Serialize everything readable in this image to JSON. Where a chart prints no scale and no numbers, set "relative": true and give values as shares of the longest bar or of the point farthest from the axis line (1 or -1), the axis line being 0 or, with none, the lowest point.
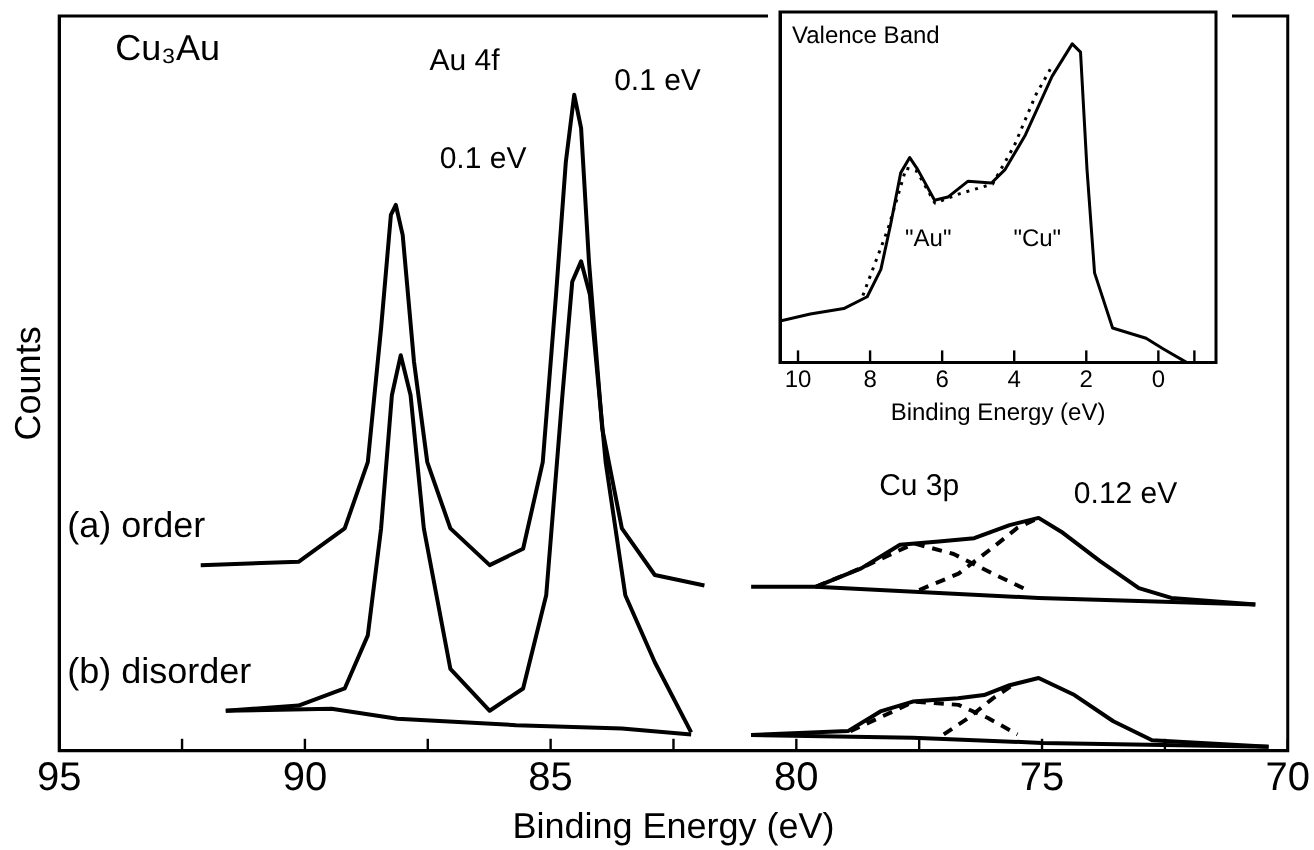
{
  "chart_data": [
    {
      "type": "line",
      "title": "Cu₃Au",
      "xlabel": "Binding Energy (eV)",
      "ylabel": "Counts",
      "relative": true,
      "grid": false,
      "legend": false,
      "marker": "none",
      "xlim": [
        95,
        70
      ],
      "xticks": [
        95,
        {
          "value": 92.5,
          "label": null
        },
        90,
        {
          "value": 87.5,
          "label": null
        },
        85,
        {
          "value": 82.5,
          "label": null
        },
        80,
        {
          "value": 77.5,
          "label": null
        },
        75,
        {
          "value": 72.5,
          "label": null
        },
        70
      ],
      "series": [
        {
          "name": "(a) order",
          "color": "#000000",
          "x": [
            92.12,
            90.13,
            89.19,
            88.72,
            88.45,
            88.25,
            88.15,
            88.01,
            87.78,
            87.51,
            87.04,
            86.24,
            85.56,
            85.16,
            84.89,
            84.69,
            84.52,
            84.38,
            84.22,
            83.95,
            83.55,
            82.88,
            81.87
          ],
          "values": [
            0.283,
            0.288,
            0.339,
            0.44,
            0.644,
            0.817,
            0.832,
            0.786,
            0.593,
            0.44,
            0.339,
            0.283,
            0.308,
            0.44,
            0.695,
            0.898,
            1.0,
            0.949,
            0.746,
            0.491,
            0.339,
            0.268,
            0.252
          ]
        },
        {
          "name": "(b) disorder",
          "color": "#000000",
          "x": [
            91.61,
            90.13,
            89.19,
            88.72,
            88.45,
            88.23,
            88.05,
            87.85,
            87.58,
            87.04,
            86.24,
            85.56,
            85.09,
            84.76,
            84.56,
            84.38,
            84.2,
            83.88,
            83.48,
            82.88,
            82.14
          ],
          "values": [
            0.061,
            0.069,
            0.095,
            0.176,
            0.339,
            0.542,
            0.603,
            0.542,
            0.339,
            0.125,
            0.061,
            0.095,
            0.237,
            0.542,
            0.715,
            0.746,
            0.695,
            0.44,
            0.237,
            0.135,
            0.028
          ]
        },
        {
          "color": "#000000",
          "x": [
            91.61,
            89.46,
            88.12,
            85.7,
            83.55,
            82.14
          ],
          "values": [
            0.061,
            0.064,
            0.049,
            0.039,
            0.034,
            0.025
          ]
        },
        {
          "color": "#000000",
          "x": [
            80.92,
            79.61,
            78.68,
            77.89,
            77.1,
            76.38,
            75.66,
            75.07,
            74.61,
            73.82,
            73.03,
            72.37,
            70.66
          ],
          "values": [
            0.25,
            0.25,
            0.278,
            0.314,
            0.319,
            0.324,
            0.344,
            0.355,
            0.334,
            0.289,
            0.248,
            0.233,
            0.223
          ]
        },
        {
          "color": "#000000",
          "x": [
            79.61,
            75.07,
            70.66
          ],
          "values": [
            0.25,
            0.233,
            0.223
          ]
        },
        {
          "color": "#000000",
          "line_style": "dashed",
          "x": [
            79.6,
            78.7,
            77.6,
            76.8,
            76.0,
            75.3
          ],
          "values": [
            0.25,
            0.278,
            0.316,
            0.3,
            0.27,
            0.245
          ]
        },
        {
          "color": "#000000",
          "line_style": "dashed",
          "x": [
            77.5,
            76.7,
            76.0,
            75.5,
            75.07
          ],
          "values": [
            0.245,
            0.27,
            0.31,
            0.34,
            0.355
          ]
        },
        {
          "color": "#000000",
          "x": [
            80.92,
            78.95,
            78.29,
            77.63,
            76.71,
            76.18,
            75.66,
            75.07,
            74.34,
            73.55,
            72.76,
            70.39
          ],
          "values": [
            0.024,
            0.03,
            0.06,
            0.075,
            0.08,
            0.085,
            0.1,
            0.111,
            0.085,
            0.045,
            0.016,
            0.006
          ]
        },
        {
          "color": "#000000",
          "x": [
            80.92,
            77.63,
            75.0,
            70.39
          ],
          "values": [
            0.024,
            0.02,
            0.012,
            0.006
          ]
        },
        {
          "color": "#000000",
          "line_style": "dashed",
          "x": [
            78.9,
            77.6,
            76.7,
            76.1,
            75.5
          ],
          "values": [
            0.03,
            0.075,
            0.07,
            0.05,
            0.025
          ]
        },
        {
          "color": "#000000",
          "line_style": "dashed",
          "x": [
            77.0,
            76.5,
            76.0,
            75.6
          ],
          "values": [
            0.025,
            0.05,
            0.08,
            0.1
          ]
        }
      ],
      "annotations": [
        "Au 4f",
        "0.1 eV",
        "0.1 eV",
        "Cu 3p",
        "0.12 eV"
      ]
    },
    {
      "type": "line",
      "title": "Valence Band",
      "xlabel": "Binding Energy (eV)",
      "relative": true,
      "grid": false,
      "legend": false,
      "marker": "none",
      "xlim": [
        10.5,
        -1.6
      ],
      "xticks": [
        10,
        8,
        6,
        4,
        2,
        0,
        {
          "value": -1,
          "label": null
        }
      ],
      "series": [
        {
          "color": "#000000",
          "x": [
            10.5,
            9.66,
            8.73,
            8.08,
            7.7,
            7.43,
            7.15,
            6.9,
            6.68,
            6.21,
            5.84,
            5.28,
            4.63,
            4.25,
            3.69,
            2.95,
            2.39,
            2.16,
            1.98,
            1.77,
            1.27,
            0.34,
            -0.13,
            -0.78
          ],
          "values": [
            0.13,
            0.152,
            0.169,
            0.206,
            0.292,
            0.433,
            0.595,
            0.643,
            0.606,
            0.509,
            0.519,
            0.569,
            0.563,
            0.606,
            0.714,
            0.898,
            1.0,
            0.974,
            0.606,
            0.281,
            0.108,
            0.076,
            0.043,
            0.0
          ]
        },
        {
          "color": "#000000",
          "line_style": "dotted",
          "x": [
            8.2,
            7.5,
            7.0,
            6.7,
            6.2,
            5.5,
            4.6,
            4.0,
            3.4,
            3.0
          ],
          "values": [
            0.21,
            0.42,
            0.61,
            0.6,
            0.5,
            0.53,
            0.56,
            0.68,
            0.84,
            0.92
          ]
        }
      ],
      "annotations": [
        "\"Au\"",
        "\"Cu\""
      ]
    }
  ]
}
